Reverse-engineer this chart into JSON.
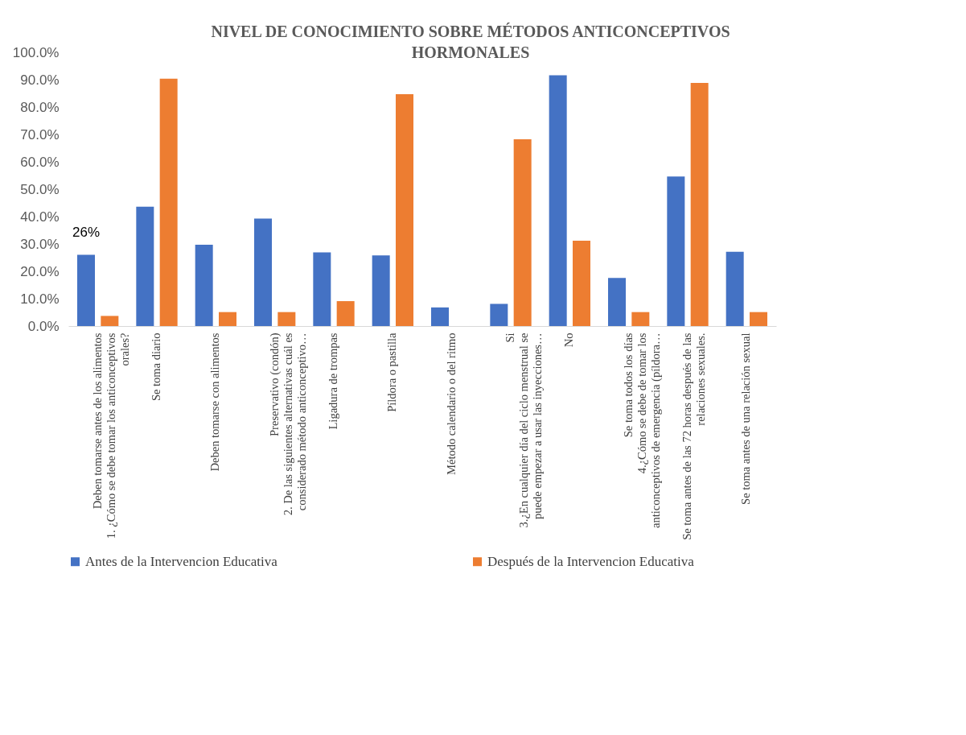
{
  "chart_data": {
    "type": "bar",
    "title": "NIVEL DE CONOCIMIENTO SOBRE MÉTODOS ANTICONCEPTIVOS HORMONALES",
    "categories": [
      "Deben tomarse antes de los alimentos\n1. ¿Cómo se debe tomar los anticonceptivos\norales?",
      "Se toma diario",
      "Deben tomarse con alimentos",
      "Preservativo (condón)\n2. De las siguientes alternativas cuál es\nconsiderado método anticonceptivo…",
      "Ligadura de trompas",
      "Píldora o pastilla",
      "Método calendario o del ritmo",
      "Si\n3.¿En cualquier día del ciclo menstrual se\npuede empezar a usar las inyecciones…",
      "No",
      "Se toma todos los días\n4.¿Cómo se debe de tomar los\nanticonceptivos de emergencia (píldora…",
      "Se toma antes de las 72 horas después de las\nrelaciones sexuales.",
      "Se toma antes de una relación sexual"
    ],
    "series": [
      {
        "name": "Antes de la Intervencion Educativa",
        "color": "#4472c4",
        "values": [
          26,
          43.6,
          29.7,
          39.3,
          26.9,
          25.8,
          6.8,
          8.1,
          91.6,
          17.6,
          54.6,
          27.1
        ],
        "value_labels": [
          "26%",
          null,
          null,
          null,
          null,
          null,
          null,
          null,
          null,
          null,
          null,
          null
        ]
      },
      {
        "name": "Después de la Intervencion Educativa",
        "color": "#ed7d31",
        "values": [
          3.7,
          90.4,
          5.1,
          5.1,
          9.1,
          84.7,
          0,
          68.2,
          31.2,
          5.1,
          88.8,
          5.1
        ]
      }
    ],
    "ylim": [
      0,
      100
    ],
    "yticks": [
      {
        "value": 0,
        "label": "0.0%"
      },
      {
        "value": 10,
        "label": "10.0%"
      },
      {
        "value": 20,
        "label": "20.0%"
      },
      {
        "value": 30,
        "label": "30.0%"
      },
      {
        "value": 40,
        "label": "40.0%"
      },
      {
        "value": 50,
        "label": "50.0%"
      },
      {
        "value": 60,
        "label": "60.0%"
      },
      {
        "value": 70,
        "label": "70.0%"
      },
      {
        "value": 80,
        "label": "80.0%"
      },
      {
        "value": 90,
        "label": "90.0%"
      },
      {
        "value": 100,
        "label": "100.0%"
      }
    ],
    "grid": false,
    "legend": "bottom"
  }
}
